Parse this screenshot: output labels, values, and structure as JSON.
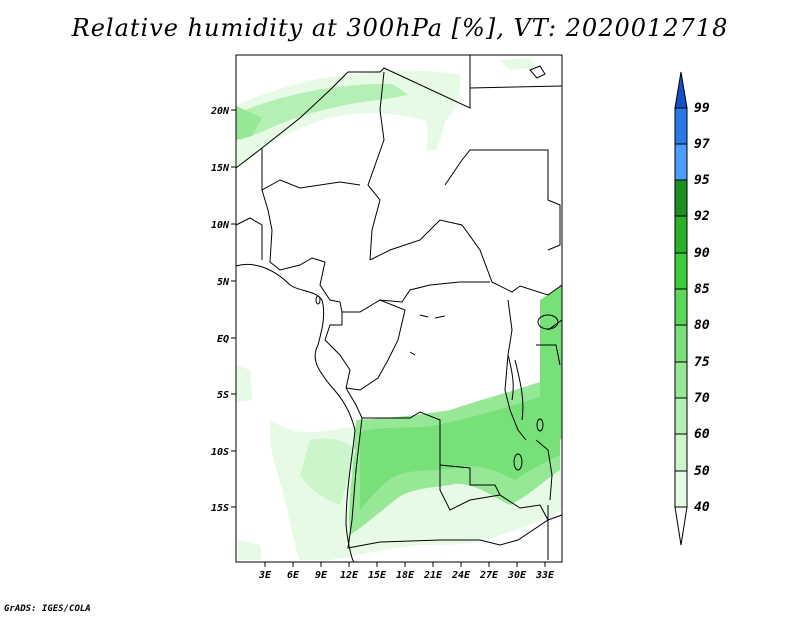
{
  "title": "Relative humidity at 300hPa [%], VT: 2020012718",
  "credit": "GrADS: IGES/COLA",
  "map": {
    "lon_ticks": [
      "3E",
      "6E",
      "9E",
      "12E",
      "15E",
      "18E",
      "21E",
      "24E",
      "27E",
      "30E",
      "33E"
    ],
    "lat_ticks": [
      "20N",
      "15N",
      "10N",
      "5N",
      "EQ",
      "5S",
      "10S",
      "15S"
    ]
  },
  "colorbar": {
    "levels": [
      "40",
      "50",
      "60",
      "70",
      "75",
      "80",
      "85",
      "90",
      "92",
      "95",
      "97",
      "99"
    ],
    "colors": [
      "#ffffff",
      "#e6fae6",
      "#ccf5cc",
      "#b4f0b4",
      "#96e896",
      "#78e078",
      "#5ad85a",
      "#3ccc3c",
      "#28b028",
      "#1e901e",
      "#4b9eff",
      "#2a78e6",
      "#1450c8"
    ]
  },
  "colors": {
    "land_line": "#000000",
    "humid_light": "#e6fae6",
    "humid_mid": "#b4f0b4",
    "humid_high": "#78e078"
  }
}
